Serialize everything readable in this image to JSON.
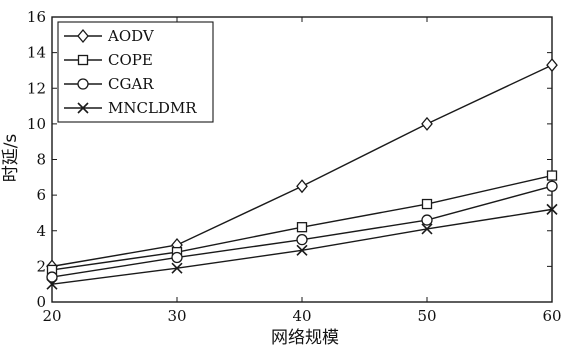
{
  "chart_data": {
    "type": "line",
    "title": "",
    "xlabel": "网络规模",
    "ylabel": "时延/s",
    "x": [
      20,
      30,
      40,
      50,
      60
    ],
    "xlim": [
      20,
      60
    ],
    "ylim": [
      0,
      16
    ],
    "xticks": [
      "20",
      "30",
      "40",
      "50",
      "60"
    ],
    "yticks": [
      "0",
      "2",
      "4",
      "6",
      "8",
      "10",
      "12",
      "14",
      "16"
    ],
    "grid": false,
    "legend_position": "top-left",
    "series": [
      {
        "name": "AODV",
        "marker": "diamond",
        "values": [
          2.0,
          3.2,
          6.5,
          10.0,
          13.3
        ]
      },
      {
        "name": "COPE",
        "marker": "square",
        "values": [
          1.8,
          2.8,
          4.2,
          5.5,
          7.1
        ]
      },
      {
        "name": "CGAR",
        "marker": "circle",
        "values": [
          1.4,
          2.5,
          3.5,
          4.6,
          6.5
        ]
      },
      {
        "name": "MNCLDMR",
        "marker": "x",
        "values": [
          1.0,
          1.9,
          2.9,
          4.1,
          5.2
        ]
      }
    ]
  }
}
